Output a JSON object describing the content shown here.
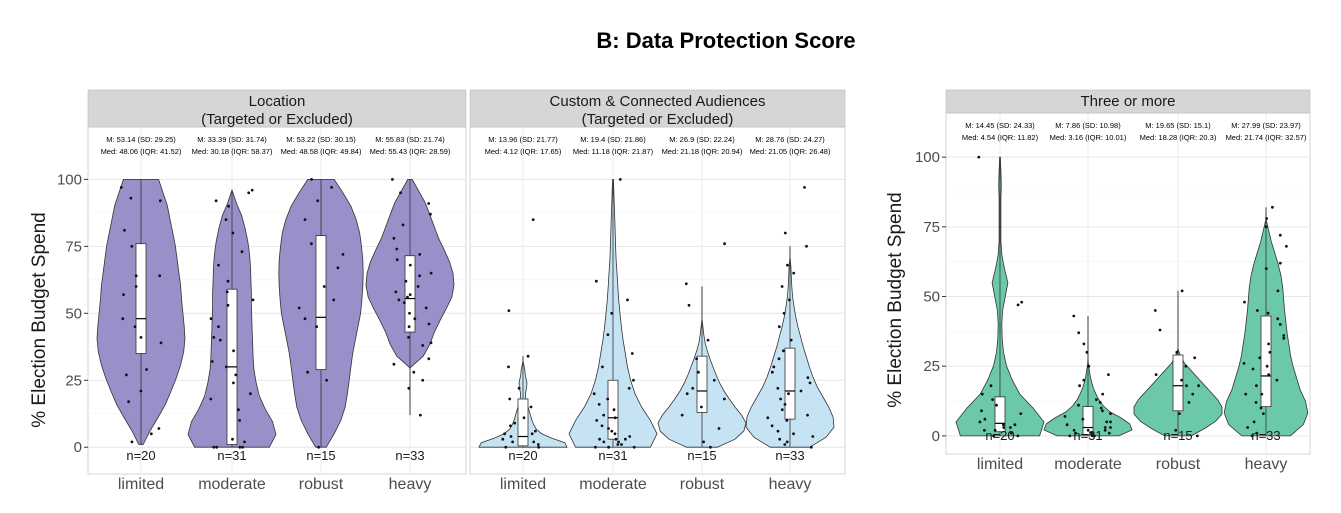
{
  "title": "B: Data Protection Score",
  "chart_data": [
    {
      "type": "violin",
      "facet": "Location\n(Targeted or Excluded)",
      "ylabel": "% Election  Budget Spend",
      "ylim": [
        -10,
        105
      ],
      "yticks": [
        0,
        25,
        50,
        75,
        100
      ],
      "categories": [
        "limited",
        "moderate",
        "robust",
        "heavy"
      ],
      "fill": "#9a8fc8",
      "n": [
        "n=20",
        "n=31",
        "n=15",
        "n=33"
      ],
      "stats_mean": [
        "M: 53.14 (SD: 29.25)",
        "M: 33.39 (SD: 31.74)",
        "M: 53.22 (SD: 30.15)",
        "M: 55.83 (SD: 21.74)"
      ],
      "stats_median": [
        "Med: 48.06 (IQR: 41.52)",
        "Med: 30.18 (IQR: 58.37)",
        "Med: 48.58 (IQR: 49.84)",
        "Med: 55.43 (IQR: 28.59)"
      ],
      "box": [
        {
          "q1": 35,
          "median": 48,
          "q3": 76,
          "lo": 1,
          "hi": 100
        },
        {
          "q1": 1,
          "median": 30,
          "q3": 59,
          "lo": 0,
          "hi": 96
        },
        {
          "q1": 29,
          "median": 48.5,
          "q3": 79,
          "lo": 0,
          "hi": 100
        },
        {
          "q1": 43,
          "median": 55.5,
          "q3": 71.5,
          "lo": 12,
          "hi": 100
        }
      ],
      "density": [
        [
          0.05,
          0.2,
          0.38,
          0.55,
          0.68,
          0.8,
          0.9,
          0.97,
          1.0,
          0.98,
          0.95,
          0.92,
          0.9,
          0.86,
          0.82,
          0.78,
          0.72,
          0.66,
          0.6,
          0.5,
          0.4
        ],
        [
          0.85,
          1.0,
          0.92,
          0.75,
          0.62,
          0.55,
          0.5,
          0.48,
          0.47,
          0.46,
          0.45,
          0.44,
          0.44,
          0.43,
          0.42,
          0.4,
          0.36,
          0.3,
          0.22,
          0.1,
          0.0
        ],
        [
          0.12,
          0.3,
          0.45,
          0.55,
          0.6,
          0.64,
          0.68,
          0.72,
          0.78,
          0.84,
          0.9,
          0.93,
          0.95,
          0.96,
          0.95,
          0.92,
          0.88,
          0.8,
          0.68,
          0.5,
          0.3
        ],
        [
          0.0,
          0.0,
          0.0,
          0.0,
          0.0,
          0.3,
          0.45,
          0.55,
          0.68,
          0.82,
          0.95,
          1.0,
          0.98,
          0.9,
          0.78,
          0.65,
          0.55,
          0.45,
          0.35,
          0.2,
          0.05
        ]
      ],
      "points": [
        [
          7,
          92,
          97,
          60,
          64,
          81,
          45,
          41,
          29,
          17,
          57,
          39,
          64,
          27,
          21,
          93,
          48,
          5,
          2,
          75
        ],
        [
          0,
          2,
          14,
          20,
          24,
          27,
          32,
          36,
          40,
          41,
          45,
          48,
          53,
          55,
          58,
          62,
          68,
          73,
          80,
          85,
          90,
          92,
          95,
          96,
          0,
          0,
          0,
          10,
          3,
          18,
          30
        ],
        [
          0,
          25,
          28,
          45,
          48,
          52,
          55,
          60,
          67,
          72,
          76,
          85,
          92,
          97,
          100
        ],
        [
          12,
          22,
          25,
          33,
          38,
          41,
          45,
          48,
          50,
          52,
          54,
          55,
          56,
          57,
          58,
          60,
          62,
          64,
          65,
          68,
          70,
          72,
          74,
          78,
          83,
          87,
          91,
          95,
          100,
          46,
          39,
          31,
          28
        ]
      ]
    },
    {
      "type": "violin",
      "facet": "Custom & Connected Audiences\n(Targeted or Excluded)",
      "ylim": [
        -10,
        105
      ],
      "categories": [
        "limited",
        "moderate",
        "robust",
        "heavy"
      ],
      "fill": "#c6e3f4",
      "n": [
        "n=20",
        "n=31",
        "n=15",
        "n=33"
      ],
      "stats_mean": [
        "M: 13.96 (SD: 21.77)",
        "M: 19.4 (SD: 21.86)",
        "M: 26.9 (SD: 22.24)",
        "M: 28.76 (SD: 24.27)"
      ],
      "stats_median": [
        "Med: 4.12 (IQR: 17.65)",
        "Med: 11.18 (IQR: 21.87)",
        "Med: 21.18 (IQR: 20.94)",
        "Med: 21.05 (IQR: 26.48)"
      ],
      "box": [
        {
          "q1": 0.5,
          "median": 4,
          "q3": 18,
          "lo": 0,
          "hi": 34
        },
        {
          "q1": 3,
          "median": 11,
          "q3": 25,
          "lo": 0,
          "hi": 100
        },
        {
          "q1": 13,
          "median": 21,
          "q3": 34,
          "lo": 0,
          "hi": 60
        },
        {
          "q1": 10.5,
          "median": 21,
          "q3": 37,
          "lo": 0,
          "hi": 75
        }
      ],
      "density": [
        [
          1.0,
          0.95,
          0.65,
          0.42,
          0.3,
          0.24,
          0.2,
          0.17,
          0.14,
          0.11,
          0.08,
          0.06,
          0.06,
          0.08,
          0.09,
          0.07,
          0.05,
          0.04,
          0.02,
          0.0,
          0.0
        ],
        [
          0.85,
          1.0,
          0.85,
          0.65,
          0.5,
          0.4,
          0.33,
          0.28,
          0.23,
          0.19,
          0.16,
          0.13,
          0.11,
          0.09,
          0.07,
          0.06,
          0.05,
          0.04,
          0.03,
          0.02,
          0.01
        ],
        [
          0.35,
          0.75,
          0.95,
          1.0,
          0.9,
          0.75,
          0.62,
          0.5,
          0.4,
          0.32,
          0.25,
          0.18,
          0.12,
          0.07,
          0.04,
          0.02,
          0.0,
          0.0,
          0.0,
          0.0,
          0.0
        ],
        [
          0.45,
          0.82,
          1.0,
          0.98,
          0.88,
          0.75,
          0.62,
          0.52,
          0.44,
          0.37,
          0.3,
          0.24,
          0.18,
          0.13,
          0.09,
          0.06,
          0.04,
          0.03,
          0.02,
          0.0,
          0.0
        ]
      ],
      "points": [
        [
          0,
          1,
          2,
          3,
          4,
          5,
          6,
          8,
          11,
          15,
          18,
          22,
          30,
          34,
          51,
          85,
          0,
          2,
          5,
          9
        ],
        [
          0,
          1,
          2,
          3,
          4,
          5,
          6,
          8,
          10,
          11,
          12,
          14,
          16,
          18,
          20,
          22,
          25,
          30,
          35,
          42,
          50,
          55,
          62,
          0,
          0,
          1,
          2,
          3,
          3,
          7,
          100
        ],
        [
          0,
          2,
          7,
          12,
          15,
          18,
          20,
          22,
          25,
          28,
          33,
          40,
          53,
          61,
          76
        ],
        [
          0,
          1,
          2,
          5,
          8,
          10,
          12,
          14,
          16,
          18,
          20,
          21,
          22,
          24,
          26,
          28,
          30,
          33,
          36,
          40,
          45,
          50,
          55,
          60,
          65,
          68,
          75,
          80,
          97,
          3,
          6,
          11,
          4
        ]
      ]
    },
    {
      "type": "violin",
      "facet": "Three or more",
      "ylabel": "% Election Budget Spend",
      "ylim": [
        -6.5,
        104
      ],
      "yticks": [
        0,
        25,
        50,
        75,
        100
      ],
      "categories": [
        "limited",
        "moderate",
        "robust",
        "heavy"
      ],
      "fill": "#6cc9a7",
      "n": [
        "n=20",
        "n=31",
        "n=15",
        "n=33"
      ],
      "stats_mean": [
        "M: 14.45 (SD: 24.33)",
        "M: 7.86 (SD: 10.98)",
        "M: 19.65 (SD: 15.1)",
        "M: 27.99 (SD: 23.97)"
      ],
      "stats_median": [
        "Med: 4.54 (IQR: 11.82)",
        "Med: 3.16 (IQR: 10.01)",
        "Med: 18.28 (IQR: 20.3)",
        "Med: 21.74 (IQR: 32.57)"
      ],
      "box": [
        {
          "q1": 1.5,
          "median": 4.5,
          "q3": 14,
          "lo": 0,
          "hi": 100
        },
        {
          "q1": 0.5,
          "median": 3,
          "q3": 10.5,
          "lo": 0,
          "hi": 43
        },
        {
          "q1": 9,
          "median": 18,
          "q3": 29,
          "lo": 0,
          "hi": 52
        },
        {
          "q1": 10.5,
          "median": 21.5,
          "q3": 43,
          "lo": 0,
          "hi": 82
        }
      ],
      "density": [
        [
          0.9,
          1.0,
          0.75,
          0.45,
          0.28,
          0.15,
          0.08,
          0.05,
          0.04,
          0.06,
          0.12,
          0.18,
          0.1,
          0.04,
          0.02,
          0.02,
          0.02,
          0.02,
          0.03,
          0.02,
          0.01
        ],
        [
          0.7,
          1.0,
          0.95,
          0.75,
          0.5,
          0.35,
          0.25,
          0.18,
          0.12,
          0.08,
          0.05,
          0.03,
          0.01,
          0.0,
          0.0,
          0.0,
          0.0,
          0.0,
          0.0,
          0.0,
          0.0
        ],
        [
          0.3,
          0.6,
          0.85,
          1.0,
          1.0,
          0.9,
          0.75,
          0.6,
          0.45,
          0.3,
          0.15,
          0.06,
          0.0,
          0.0,
          0.0,
          0.0,
          0.0,
          0.0,
          0.0,
          0.0,
          0.0
        ],
        [
          0.55,
          0.85,
          0.95,
          0.9,
          0.78,
          0.7,
          0.62,
          0.56,
          0.52,
          0.48,
          0.45,
          0.42,
          0.4,
          0.38,
          0.34,
          0.28,
          0.2,
          0.12,
          0.06,
          0.0,
          0.0
        ]
      ],
      "points": [
        [
          0,
          1,
          2,
          3,
          4,
          5,
          6,
          8,
          11,
          15,
          18,
          47,
          48,
          100,
          0,
          2,
          3,
          4,
          9,
          13
        ],
        [
          0,
          0,
          1,
          1,
          2,
          2,
          3,
          3,
          4,
          5,
          6,
          7,
          8,
          9,
          10,
          11,
          13,
          15,
          18,
          20,
          25,
          30,
          33,
          37,
          43,
          0,
          1,
          2,
          5,
          12,
          22
        ],
        [
          0,
          2,
          8,
          12,
          15,
          18,
          20,
          22,
          25,
          28,
          30,
          38,
          45,
          52,
          18
        ],
        [
          0,
          1,
          3,
          5,
          8,
          10,
          12,
          15,
          18,
          20,
          22,
          24,
          26,
          28,
          30,
          33,
          36,
          40,
          42,
          44,
          45,
          48,
          52,
          60,
          62,
          68,
          72,
          75,
          78,
          82,
          25,
          35,
          15
        ]
      ]
    }
  ]
}
